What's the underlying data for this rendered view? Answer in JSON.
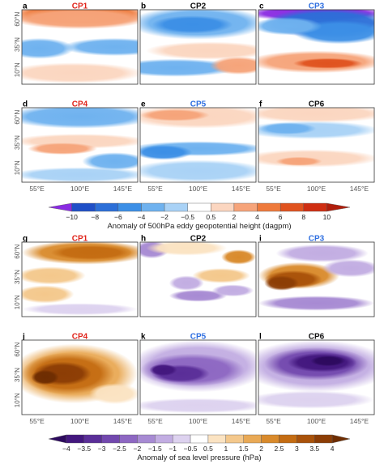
{
  "figure": {
    "geo_panels": [
      {
        "letter": "a",
        "title": "CP1",
        "title_color": "#e0241b",
        "pattern": "a",
        "colorbar": "z500"
      },
      {
        "letter": "b",
        "title": "CP2",
        "title_color": "#111111",
        "pattern": "b",
        "colorbar": "z500"
      },
      {
        "letter": "c",
        "title": "CP3",
        "title_color": "#2f6fe0",
        "pattern": "c",
        "colorbar": "z500"
      },
      {
        "letter": "d",
        "title": "CP4",
        "title_color": "#e0241b",
        "pattern": "d",
        "colorbar": "z500"
      },
      {
        "letter": "e",
        "title": "CP5",
        "title_color": "#2f6fe0",
        "pattern": "e",
        "colorbar": "z500"
      },
      {
        "letter": "f",
        "title": "CP6",
        "title_color": "#111111",
        "pattern": "f",
        "colorbar": "z500"
      },
      {
        "letter": "g",
        "title": "CP1",
        "title_color": "#e0241b",
        "pattern": "g",
        "colorbar": "slp"
      },
      {
        "letter": "h",
        "title": "CP2",
        "title_color": "#111111",
        "pattern": "h",
        "colorbar": "slp"
      },
      {
        "letter": "i",
        "title": "CP3",
        "title_color": "#2f6fe0",
        "pattern": "i",
        "colorbar": "slp"
      },
      {
        "letter": "j",
        "title": "CP4",
        "title_color": "#e0241b",
        "pattern": "j",
        "colorbar": "slp"
      },
      {
        "letter": "k",
        "title": "CP5",
        "title_color": "#2f6fe0",
        "pattern": "k",
        "colorbar": "slp"
      },
      {
        "letter": "l",
        "title": "CP6",
        "title_color": "#111111",
        "pattern": "l",
        "colorbar": "slp"
      }
    ],
    "lat_ticks": [
      "10°N",
      "35°N",
      "60°N"
    ],
    "lon_ticks": [
      "55°E",
      "100°E",
      "145°E"
    ],
    "colorbar_z500": {
      "label": "Anomaly of 500hPa eddy geopotential height (dagpm)",
      "ticks": [
        "−10",
        "−8",
        "−6",
        "−4",
        "−2",
        "−0.5",
        "0.5",
        "2",
        "4",
        "6",
        "8",
        "10"
      ],
      "colors": [
        "#8a2be2",
        "#1f4fc7",
        "#2c6fd8",
        "#3c8fe6",
        "#6fb2ef",
        "#a9d2f6",
        "#ffffff",
        "#fbd6c0",
        "#f6a47a",
        "#ee7a3c",
        "#e0531f",
        "#cf2e12",
        "#b01e0c"
      ]
    },
    "colorbar_slp": {
      "label": "Anomaly of sea level pressure (hPa)",
      "ticks": [
        "−4",
        "−3.5",
        "−3",
        "−2.5",
        "−2",
        "−1.5",
        "−1",
        "−0.5",
        "0.5",
        "1",
        "1.5",
        "2",
        "2.5",
        "3",
        "3.5",
        "4"
      ],
      "colors": [
        "#2d0a5e",
        "#43177e",
        "#5a2e98",
        "#7248ae",
        "#8d67c2",
        "#a78ad3",
        "#c2ade2",
        "#ddd2ef",
        "#ffffff",
        "#fbe3c2",
        "#f4c88c",
        "#e9a955",
        "#d98a2b",
        "#c46c12",
        "#a9520a",
        "#8c3d05",
        "#6e2d02"
      ]
    }
  },
  "chart_data": [
    {
      "type": "heatmap",
      "panel": "a",
      "title": "CP1",
      "field": "500hPa eddy geopotential height anomaly",
      "unit": "dagpm",
      "lon_ticks": [
        "55°E",
        "100°E",
        "145°E"
      ],
      "lat_ticks": [
        "10°N",
        "35°N",
        "60°N"
      ],
      "colorbar_range": [
        -10,
        10
      ]
    },
    {
      "type": "heatmap",
      "panel": "b",
      "title": "CP2",
      "field": "500hPa eddy geopotential height anomaly",
      "unit": "dagpm",
      "colorbar_range": [
        -10,
        10
      ]
    },
    {
      "type": "heatmap",
      "panel": "c",
      "title": "CP3",
      "field": "500hPa eddy geopotential height anomaly",
      "unit": "dagpm",
      "colorbar_range": [
        -10,
        10
      ]
    },
    {
      "type": "heatmap",
      "panel": "d",
      "title": "CP4",
      "field": "500hPa eddy geopotential height anomaly",
      "unit": "dagpm",
      "colorbar_range": [
        -10,
        10
      ]
    },
    {
      "type": "heatmap",
      "panel": "e",
      "title": "CP5",
      "field": "500hPa eddy geopotential height anomaly",
      "unit": "dagpm",
      "colorbar_range": [
        -10,
        10
      ]
    },
    {
      "type": "heatmap",
      "panel": "f",
      "title": "CP6",
      "field": "500hPa eddy geopotential height anomaly",
      "unit": "dagpm",
      "colorbar_range": [
        -10,
        10
      ]
    },
    {
      "type": "heatmap",
      "panel": "g",
      "title": "CP1",
      "field": "sea level pressure anomaly",
      "unit": "hPa",
      "colorbar_range": [
        -4,
        4
      ]
    },
    {
      "type": "heatmap",
      "panel": "h",
      "title": "CP2",
      "field": "sea level pressure anomaly",
      "unit": "hPa",
      "colorbar_range": [
        -4,
        4
      ]
    },
    {
      "type": "heatmap",
      "panel": "i",
      "title": "CP3",
      "field": "sea level pressure anomaly",
      "unit": "hPa",
      "colorbar_range": [
        -4,
        4
      ]
    },
    {
      "type": "heatmap",
      "panel": "j",
      "title": "CP4",
      "field": "sea level pressure anomaly",
      "unit": "hPa",
      "colorbar_range": [
        -4,
        4
      ]
    },
    {
      "type": "heatmap",
      "panel": "k",
      "title": "CP5",
      "field": "sea level pressure anomaly",
      "unit": "hPa",
      "colorbar_range": [
        -4,
        4
      ]
    },
    {
      "type": "heatmap",
      "panel": "l",
      "title": "CP6",
      "field": "sea level pressure anomaly",
      "unit": "hPa",
      "colorbar_range": [
        -4,
        4
      ]
    }
  ]
}
